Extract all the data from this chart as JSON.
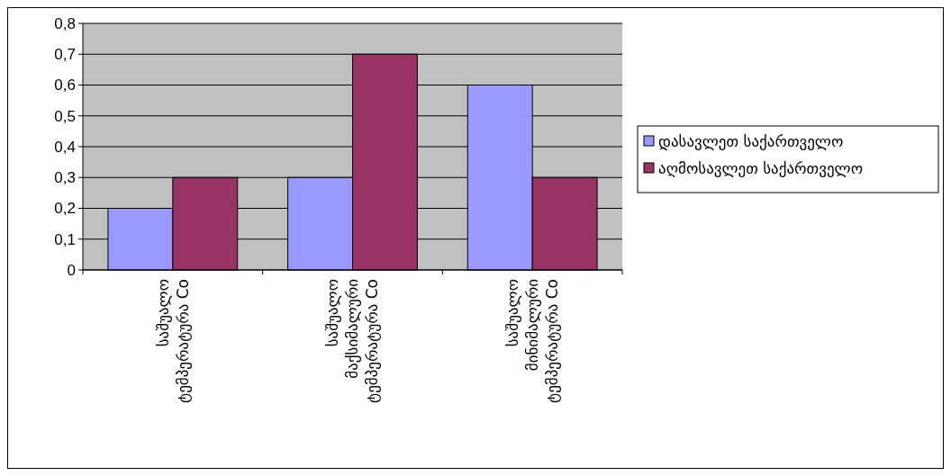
{
  "chart_data": {
    "type": "bar",
    "categories": [
      "საშუალო\nტემპერატურა Co",
      "საშუალო\nმაქსიმალური\nტემპერატურა Co",
      "საშუალო\nმინიმალური\nტემპერატურა Co"
    ],
    "series": [
      {
        "name": "დასავლეთ საქართველო",
        "color": "#9999ff",
        "values": [
          0.2,
          0.3,
          0.6
        ]
      },
      {
        "name": "აღმოსავლეთ საქართველო",
        "color": "#993366",
        "values": [
          0.3,
          0.7,
          0.3
        ]
      }
    ],
    "ylim": [
      0,
      0.8
    ],
    "yticks": [
      {
        "value": 0,
        "label": "0"
      },
      {
        "value": 0.1,
        "label": "0,1"
      },
      {
        "value": 0.2,
        "label": "0,2"
      },
      {
        "value": 0.3,
        "label": "0,3"
      },
      {
        "value": 0.4,
        "label": "0,4"
      },
      {
        "value": 0.5,
        "label": "0,5"
      },
      {
        "value": 0.6,
        "label": "0,6"
      },
      {
        "value": 0.7,
        "label": "0,7"
      },
      {
        "value": 0.8,
        "label": "0,8"
      }
    ],
    "grid": "y",
    "legend": "right"
  }
}
